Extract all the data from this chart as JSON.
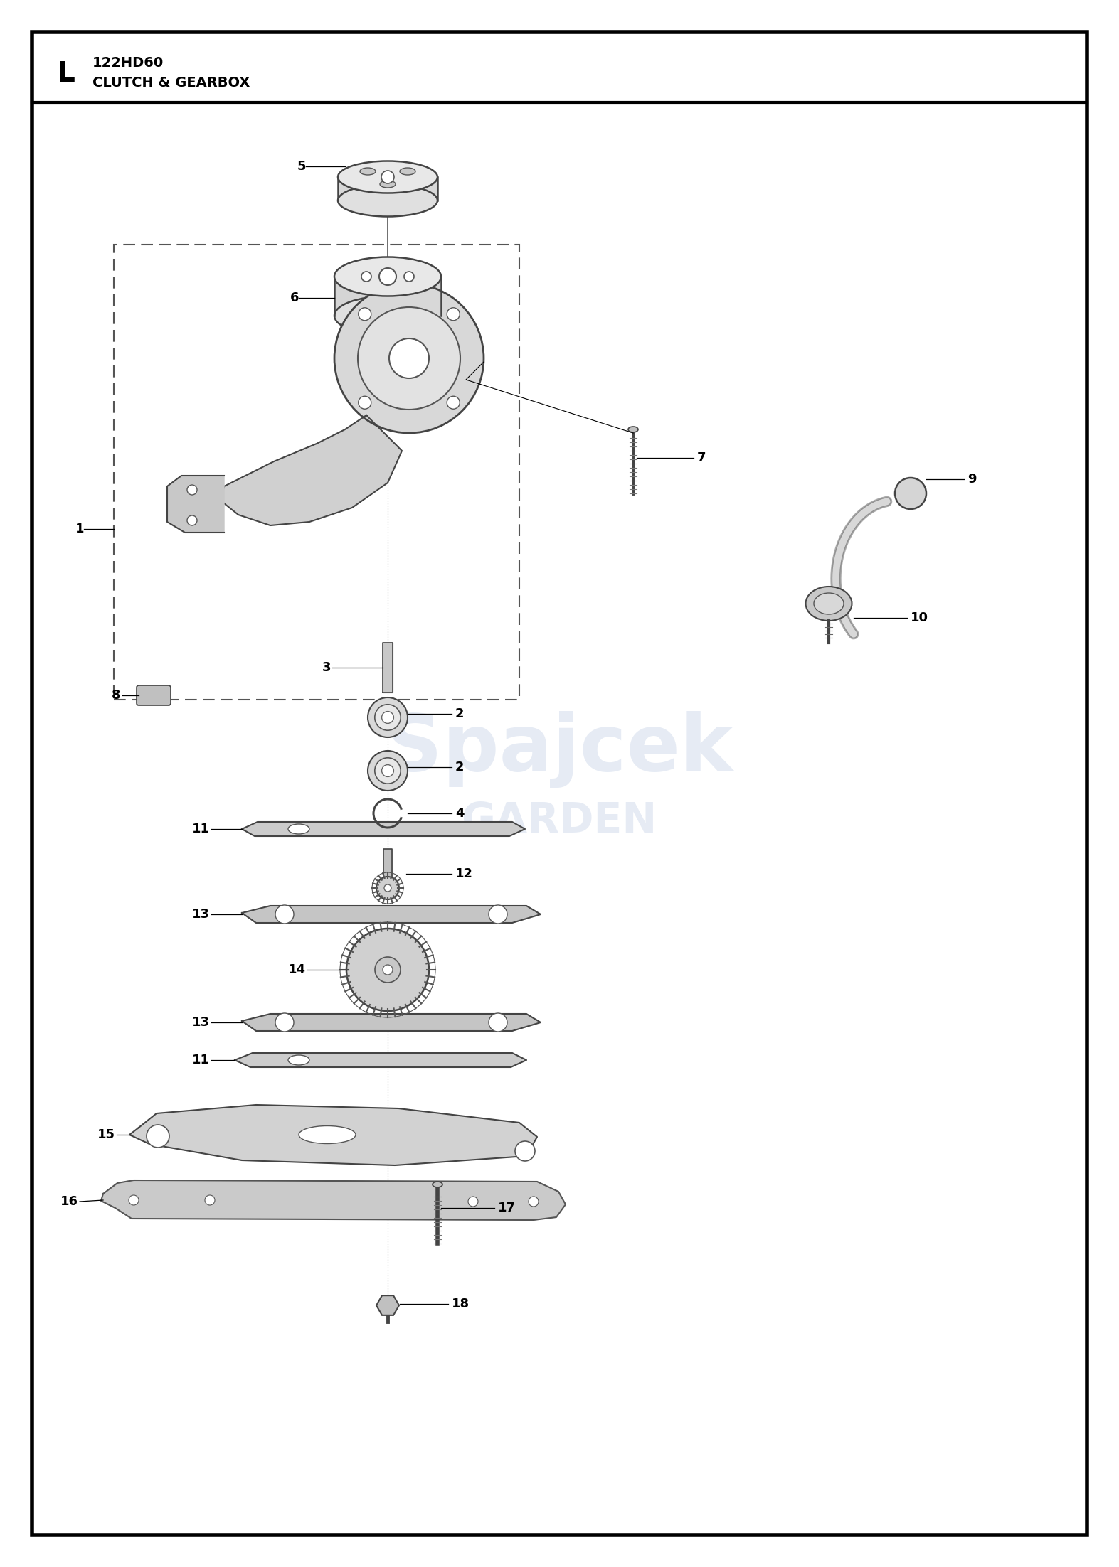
{
  "title_model": "122HD60",
  "title_section": "CLUTCH & GEARBOX",
  "section_letter": "L",
  "bg_color": "#ffffff",
  "border_color": "#000000",
  "line_color": "#000000",
  "part_color": "#cccccc",
  "part_stroke": "#333333",
  "watermark_line1": "Spajcek",
  "watermark_line2": "GARDEN",
  "watermark_color": "#c8d4e8",
  "part_labels": [
    1,
    2,
    3,
    4,
    5,
    6,
    7,
    8,
    9,
    10,
    11,
    12,
    13,
    14,
    15,
    16,
    17,
    18
  ]
}
